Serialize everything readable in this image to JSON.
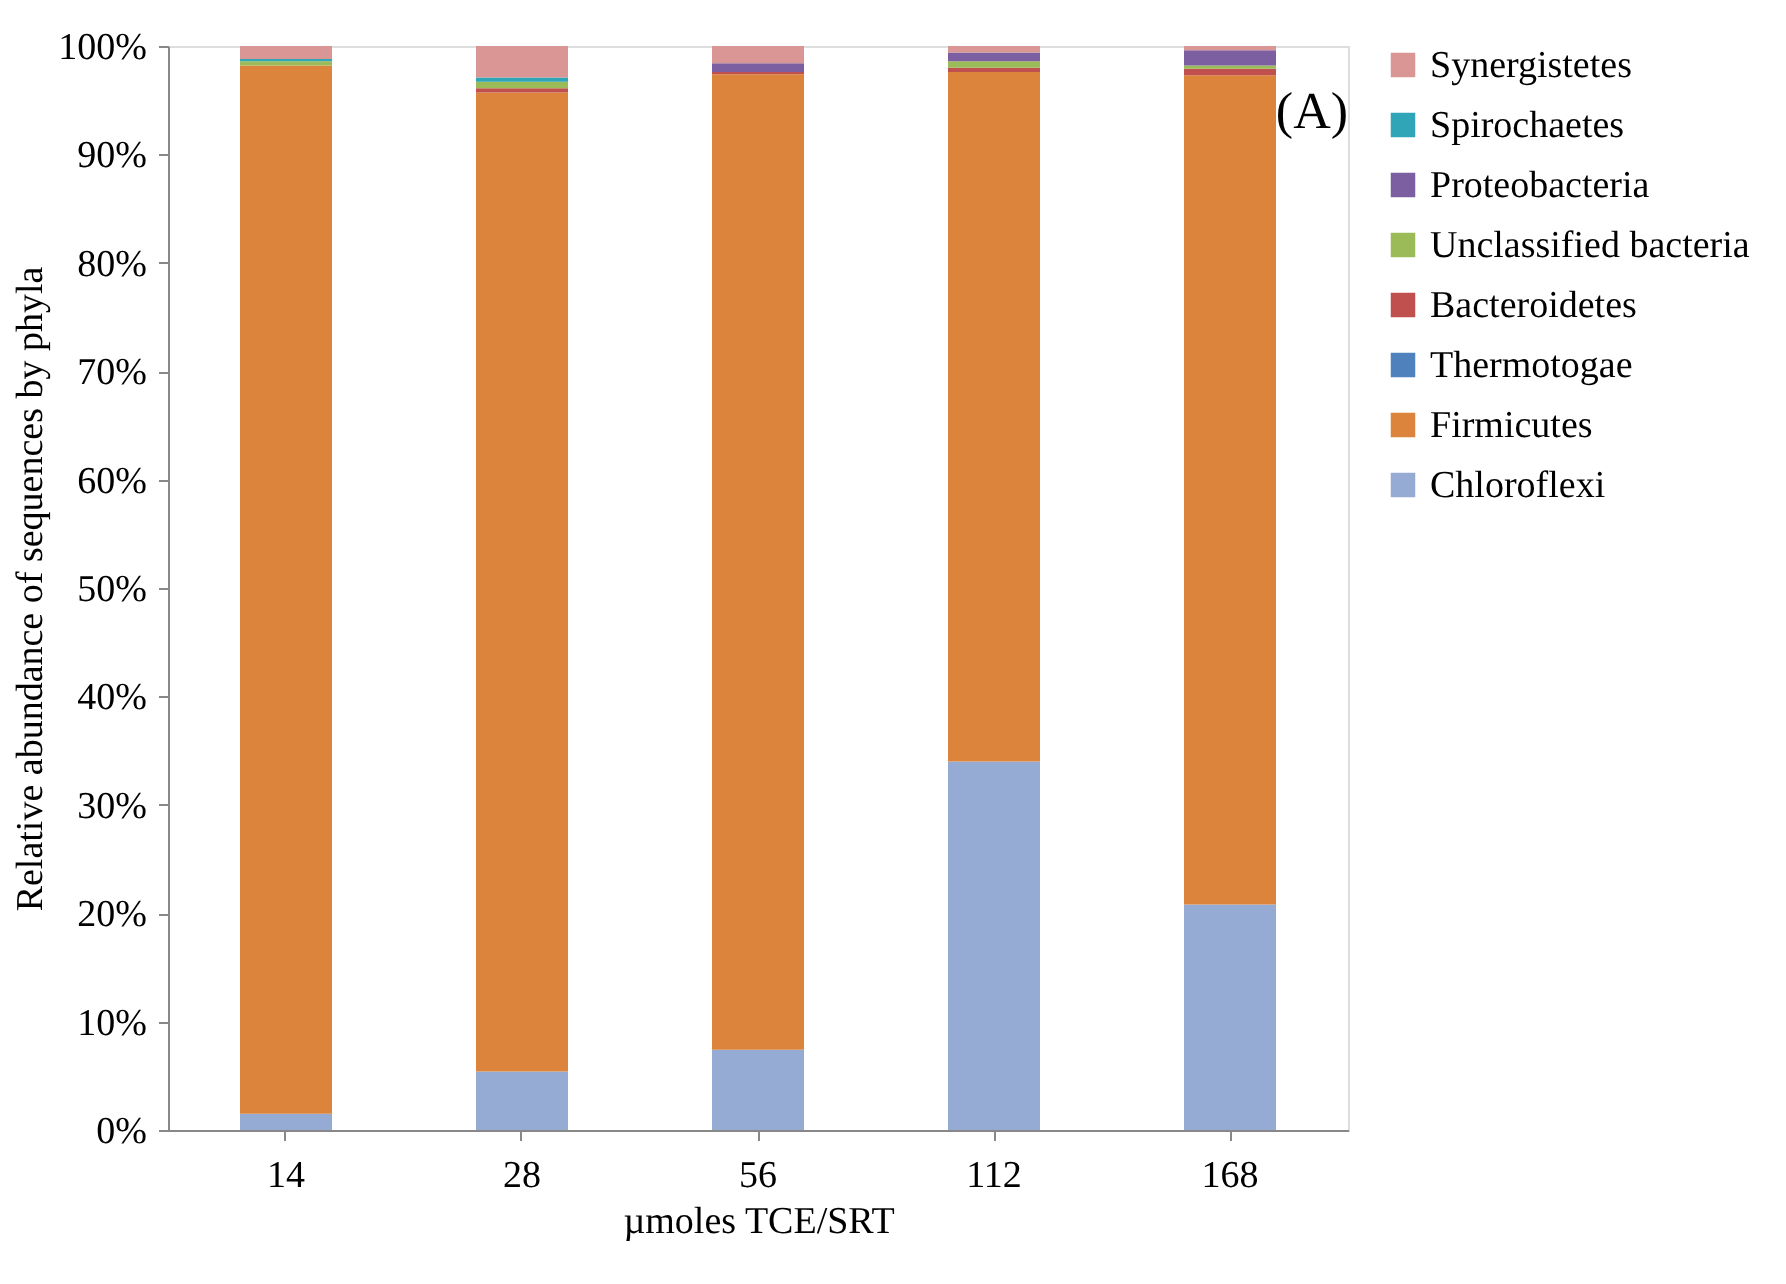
{
  "chart_data": {
    "type": "bar",
    "stacked": true,
    "categories": [
      "14",
      "28",
      "56",
      "112",
      "168"
    ],
    "xlabel": "µmoles TCE/SRT",
    "ylabel": "Relative abundance of sequences by phyla",
    "series": [
      {
        "name": "Chloroflexi",
        "color": "#95abd4",
        "values": [
          1.5,
          5.4,
          7.4,
          34.0,
          20.8
        ]
      },
      {
        "name": "Firmicutes",
        "color": "#dd843c",
        "values": [
          96.7,
          90.3,
          90.0,
          63.6,
          76.5
        ]
      },
      {
        "name": "Thermotogae",
        "color": "#4f81bd",
        "values": [
          0,
          0,
          0,
          0,
          0
        ]
      },
      {
        "name": "Bacteroidetes",
        "color": "#c0504d",
        "values": [
          0,
          0.4,
          0.2,
          0.4,
          0.6
        ]
      },
      {
        "name": "Unclassified bacteria",
        "color": "#9bbb59",
        "values": [
          0.4,
          0.6,
          0,
          0.6,
          0.3
        ]
      },
      {
        "name": "Proteobacteria",
        "color": "#7b5fa0",
        "values": [
          0,
          0,
          0.8,
          0.8,
          1.4
        ]
      },
      {
        "name": "Spirochaetes",
        "color": "#31a5b8",
        "values": [
          0.2,
          0.4,
          0,
          0,
          0
        ]
      },
      {
        "name": "Synergistetes",
        "color": "#d99694",
        "values": [
          1.2,
          2.9,
          1.6,
          0.6,
          0.4
        ]
      }
    ],
    "ylim": [
      0,
      100
    ],
    "yticks": [
      {
        "value": 0,
        "label": "0%"
      },
      {
        "value": 10,
        "label": "10%"
      },
      {
        "value": 20,
        "label": "20%"
      },
      {
        "value": 30,
        "label": "30%"
      },
      {
        "value": 40,
        "label": "40%"
      },
      {
        "value": 50,
        "label": "50%"
      },
      {
        "value": 60,
        "label": "60%"
      },
      {
        "value": 70,
        "label": "70%"
      },
      {
        "value": 80,
        "label": "80%"
      },
      {
        "value": 90,
        "label": "90%"
      },
      {
        "value": 100,
        "label": "100%"
      }
    ],
    "grid": false,
    "legend": "right",
    "annotations": [
      "(A)"
    ]
  }
}
